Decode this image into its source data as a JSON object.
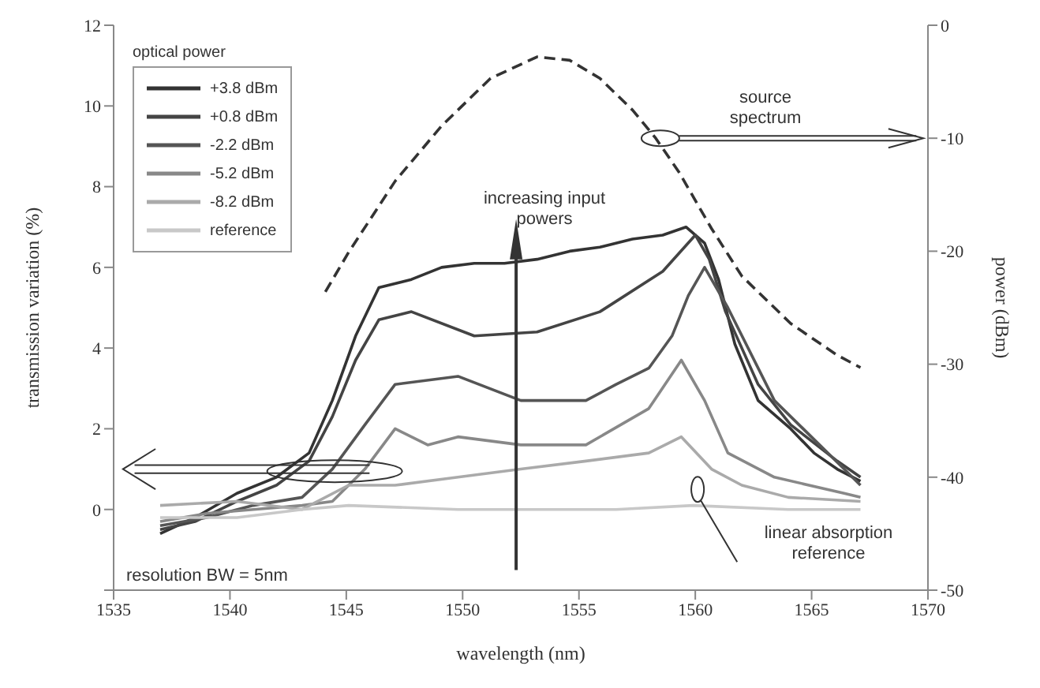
{
  "chart_data": {
    "type": "line",
    "xlabel": "wavelength (nm)",
    "ylabel": "transmission variation (%)",
    "y2label": "power (dBm)",
    "legend_title": "optical power",
    "xlim": [
      1535,
      1570
    ],
    "xticks": [
      1535,
      1540,
      1545,
      1550,
      1555,
      1560,
      1565,
      1570
    ],
    "ylim": [
      -2,
      12
    ],
    "yticks": [
      {
        "value": -2,
        "label": null
      },
      0,
      2,
      4,
      6,
      8,
      10,
      12
    ],
    "y2lim": [
      -50,
      0
    ],
    "y2ticks": [
      -50,
      -40,
      -30,
      -20,
      -10,
      0
    ],
    "grid": false,
    "legend": "top left",
    "marker": "none",
    "annotations": [
      "increasing input powers",
      "source spectrum",
      "linear absorption reference",
      "resolution BW = 5nm"
    ],
    "series": [
      {
        "name": "+3.8 dBm",
        "color": "#333333",
        "line_style": "solid",
        "x": [
          1537,
          1538.5,
          1540.3,
          1542,
          1543.4,
          1544.4,
          1545.4,
          1546.4,
          1547.8,
          1549.1,
          1550.5,
          1551.8,
          1553.2,
          1554.6,
          1555.9,
          1557.3,
          1558.6,
          1559.6,
          1560.4,
          1561,
          1561.7,
          1562.7,
          1564.1,
          1565.1,
          1566.1,
          1567.1
        ],
        "values": [
          -0.6,
          -0.2,
          0.4,
          0.8,
          1.4,
          2.7,
          4.3,
          5.5,
          5.7,
          6,
          6.1,
          6.1,
          6.2,
          6.4,
          6.5,
          6.7,
          6.8,
          7,
          6.6,
          5.7,
          4.1,
          2.7,
          2,
          1.4,
          1,
          0.7
        ]
      },
      {
        "name": "+0.8 dBm",
        "color": "#444444",
        "line_style": "solid",
        "x": [
          1537,
          1538.5,
          1540.3,
          1542,
          1543.4,
          1544.4,
          1545.4,
          1546.4,
          1547.8,
          1550.5,
          1553.2,
          1555.9,
          1558.6,
          1560,
          1560.6,
          1561.3,
          1562.7,
          1564.1,
          1566.1,
          1567.1
        ],
        "values": [
          -0.5,
          -0.3,
          0.2,
          0.6,
          1.2,
          2.3,
          3.7,
          4.7,
          4.9,
          4.3,
          4.4,
          4.9,
          5.9,
          6.8,
          6.2,
          4.9,
          3.1,
          2.1,
          1.2,
          0.8
        ]
      },
      {
        "name": "-2.2 dBm",
        "color": "#555555",
        "line_style": "solid",
        "x": [
          1537,
          1539,
          1541,
          1543.1,
          1544.4,
          1545.8,
          1547.1,
          1549.8,
          1552.5,
          1555.3,
          1556.6,
          1558,
          1559,
          1559.7,
          1560.4,
          1561.4,
          1563.4,
          1566.4,
          1567.1
        ],
        "values": [
          -0.4,
          -0.2,
          0.1,
          0.3,
          1,
          2.1,
          3.1,
          3.3,
          2.7,
          2.7,
          3.1,
          3.5,
          4.3,
          5.3,
          6,
          5,
          2.7,
          1,
          0.6
        ]
      },
      {
        "name": "-5.2 dBm",
        "color": "#888888",
        "line_style": "solid",
        "x": [
          1537,
          1539,
          1541,
          1543.1,
          1544.4,
          1545.8,
          1547.1,
          1548.5,
          1549.8,
          1552.5,
          1555.3,
          1558,
          1559.4,
          1560.4,
          1561.4,
          1563.4,
          1566.4,
          1567.1
        ],
        "values": [
          -0.3,
          -0.1,
          0,
          0.1,
          0.2,
          1,
          2,
          1.6,
          1.8,
          1.6,
          1.6,
          2.5,
          3.7,
          2.7,
          1.4,
          0.8,
          0.4,
          0.3
        ]
      },
      {
        "name": "-8.2 dBm",
        "color": "#aaaaaa",
        "line_style": "solid",
        "x": [
          1537,
          1540.3,
          1543.1,
          1545.1,
          1547.1,
          1549.8,
          1552.5,
          1555.3,
          1558,
          1559.4,
          1560.7,
          1562,
          1564,
          1567.1
        ],
        "values": [
          0.1,
          0.2,
          0,
          0.6,
          0.6,
          0.8,
          1,
          1.2,
          1.4,
          1.8,
          1,
          0.6,
          0.3,
          0.2
        ]
      },
      {
        "name": "reference",
        "color": "#c8c8c8",
        "line_style": "solid",
        "x": [
          1537,
          1540.3,
          1543.1,
          1545.1,
          1549.8,
          1556.6,
          1559.9,
          1564,
          1567.1
        ],
        "values": [
          -0.2,
          -0.2,
          0,
          0.1,
          0,
          0,
          0.1,
          0,
          0
        ]
      },
      {
        "color": "#333333",
        "line_style": "dashed",
        "axis": "y2",
        "x": [
          1544.1,
          1545.1,
          1547.1,
          1549.1,
          1551.2,
          1553.2,
          1554.6,
          1555.9,
          1557.3,
          1558.3,
          1559.3,
          1560.7,
          1562,
          1564.1,
          1566.1,
          1567.1
        ],
        "values": [
          -23.6,
          -20.1,
          -13.8,
          -8.9,
          -4.7,
          -2.8,
          -3.1,
          -4.7,
          -7.5,
          -10,
          -13,
          -18,
          -22.2,
          -26.4,
          -29.2,
          -30.3
        ]
      }
    ]
  }
}
